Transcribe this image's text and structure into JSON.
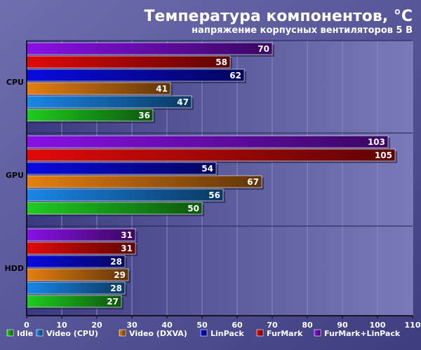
{
  "chart_data": {
    "type": "bar",
    "orientation": "horizontal",
    "title": "Температура компонентов, °C",
    "subtitle": "напряжение корпусных вентиляторов 5 В",
    "categories": [
      "CPU",
      "GPU",
      "HDD"
    ],
    "series": [
      {
        "name": "Idle",
        "color": "#1fcc1f",
        "values": [
          36,
          50,
          27
        ]
      },
      {
        "name": "Video (CPU)",
        "color": "#1a86e6",
        "values": [
          47,
          56,
          28
        ]
      },
      {
        "name": "Video (DXVA)",
        "color": "#e57f12",
        "values": [
          41,
          67,
          29
        ]
      },
      {
        "name": "LinPack",
        "color": "#0a0ae0",
        "values": [
          62,
          54,
          28
        ]
      },
      {
        "name": "FurMark",
        "color": "#e00a0a",
        "values": [
          58,
          105,
          31
        ]
      },
      {
        "name": "FurMark+LinPack",
        "color": "#8a10e6",
        "values": [
          70,
          103,
          31
        ]
      }
    ],
    "xlim": [
      0,
      110
    ],
    "xticks": [
      0,
      10,
      20,
      30,
      40,
      50,
      60,
      70,
      80,
      90,
      100,
      110
    ],
    "grid": true,
    "legend_position": "bottom"
  }
}
